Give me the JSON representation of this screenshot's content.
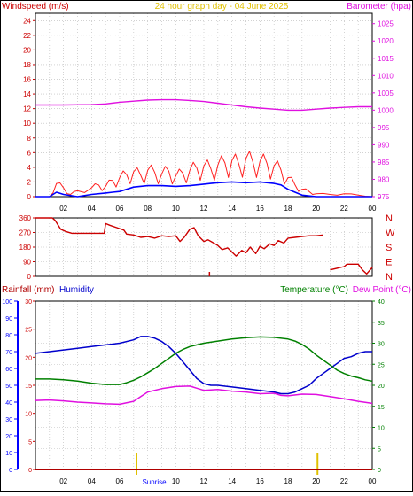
{
  "title": "24 hour graph day - 04 June 2025",
  "x_ticks": [
    "02",
    "04",
    "06",
    "08",
    "10",
    "12",
    "14",
    "16",
    "18",
    "20",
    "22",
    "00"
  ],
  "sunrise_label": "Sunrise",
  "colors": {
    "wind_gust": "#ff2020",
    "wind_avg": "#0000ff",
    "barometer": "#e010e0",
    "direction": "#cc0000",
    "rainfall": "#b00000",
    "humidity": "#0000cc",
    "temperature": "#008000",
    "dewpoint": "#e010e0",
    "sun_marker": "#e0c000",
    "axis_blue": "#0000ff",
    "axis_red": "#cc0000"
  },
  "chart_data": [
    {
      "type": "line",
      "name": "wind-barometer",
      "left_label": "Windspeed (m/s)",
      "right_label": "Barometer (hpa)",
      "left_ticks": [
        "0",
        "2",
        "4",
        "6",
        "8",
        "10",
        "12",
        "14",
        "16",
        "18",
        "20",
        "22",
        "24"
      ],
      "right_ticks": [
        "975",
        "980",
        "985",
        "990",
        "995",
        "1000",
        "1005",
        "1010",
        "1015",
        "1020",
        "1025"
      ],
      "left_range": [
        0,
        25
      ],
      "right_range": [
        975,
        1028
      ],
      "x_range_hours": [
        0,
        24
      ],
      "series": [
        {
          "key": "barometer",
          "axis": "right",
          "x": [
            0,
            2,
            4,
            5,
            6,
            7,
            8,
            9,
            10,
            11,
            12,
            13,
            14,
            15,
            16,
            17,
            18,
            19,
            20,
            21,
            22,
            23,
            24
          ],
          "values": [
            1001.5,
            1001.5,
            1001.6,
            1001.8,
            1002.3,
            1002.6,
            1002.9,
            1003.0,
            1003.0,
            1002.8,
            1002.5,
            1002.0,
            1001.5,
            1001.0,
            1000.6,
            1000.3,
            1000.0,
            1000.0,
            1000.3,
            1000.6,
            1000.8,
            1001.0,
            1001.0
          ]
        },
        {
          "key": "wind_gust",
          "axis": "left",
          "x": [
            0,
            1,
            1.5,
            2,
            2.5,
            3,
            4,
            4.5,
            5,
            5.5,
            6,
            6.5,
            7,
            7.5,
            8,
            8.5,
            9,
            9.5,
            10,
            10.5,
            11,
            11.5,
            12,
            12.5,
            13,
            13.5,
            14,
            14.5,
            15,
            15.5,
            16,
            16.5,
            17,
            17.5,
            18,
            18.5,
            19,
            19.5,
            20,
            21,
            22,
            23,
            24
          ],
          "values": [
            0,
            0,
            1.8,
            1.2,
            0.3,
            0.8,
            1.2,
            1.6,
            1.4,
            2.2,
            2.6,
            3.0,
            3.4,
            2.9,
            3.6,
            3.3,
            3.1,
            3.5,
            2.8,
            3.2,
            3.6,
            3.9,
            4.2,
            3.8,
            4.3,
            4.6,
            4.9,
            4.4,
            5.2,
            4.7,
            4.8,
            4.5,
            4.2,
            3.6,
            2.6,
            1.6,
            1.0,
            0.7,
            0.4,
            0.3,
            0.4,
            0.2,
            0
          ]
        },
        {
          "key": "wind_avg",
          "axis": "left",
          "x": [
            0,
            1,
            1.5,
            2,
            3,
            4,
            5,
            5.5,
            6,
            6.5,
            7,
            8,
            9,
            10,
            11,
            12,
            12.5,
            13,
            14,
            15,
            16,
            17,
            17.5,
            18,
            18.5,
            19,
            20,
            22,
            24
          ],
          "values": [
            0,
            0,
            0.6,
            0.3,
            0,
            0.3,
            0.5,
            0.6,
            0.7,
            1.0,
            1.3,
            1.5,
            1.5,
            1.4,
            1.5,
            1.7,
            1.8,
            1.9,
            2.0,
            1.9,
            2.0,
            1.8,
            1.6,
            1.0,
            0.6,
            0.2,
            0,
            0,
            0
          ]
        }
      ]
    },
    {
      "type": "line",
      "name": "wind-direction",
      "left_ticks": [
        "0",
        "90",
        "180",
        "270",
        "360"
      ],
      "right_ticks": [
        "N",
        "W",
        "S",
        "E",
        "N"
      ],
      "left_range": [
        0,
        360
      ],
      "x_range_hours": [
        0,
        24
      ],
      "series": [
        {
          "key": "direction",
          "x": [
            0,
            1.2,
            1.4,
            1.8,
            2.2,
            2.6,
            3,
            3.5,
            4,
            4.5,
            4.9,
            5,
            5.3,
            5.8,
            6.3,
            6.5,
            7,
            7.5,
            8,
            8.5,
            9,
            9.5,
            10,
            10.3,
            10.6,
            11,
            11.3,
            11.6,
            12,
            12.3,
            12.7,
            13,
            13.3,
            13.7,
            14,
            14.3,
            14.7,
            15,
            15.3,
            15.7,
            16,
            16.3,
            16.7,
            17,
            17.3,
            17.7,
            18,
            18.5,
            19,
            19.5,
            20,
            20.5
          ],
          "values": [
            360,
            360,
            345,
            290,
            275,
            265,
            265,
            265,
            265,
            265,
            265,
            325,
            315,
            300,
            285,
            260,
            255,
            240,
            245,
            235,
            250,
            245,
            250,
            215,
            240,
            290,
            300,
            250,
            215,
            225,
            205,
            190,
            165,
            175,
            150,
            125,
            160,
            145,
            180,
            140,
            185,
            170,
            200,
            190,
            220,
            205,
            235,
            240,
            245,
            250,
            250,
            255
          ]
        },
        {
          "key": "direction_tail",
          "x": [
            21,
            22,
            22.2,
            23,
            23.3,
            23.6,
            24
          ],
          "values": [
            40,
            60,
            75,
            75,
            40,
            15,
            55
          ]
        }
      ]
    },
    {
      "type": "line",
      "name": "rain-humidity-temperature",
      "left_labels": [
        "Rainfall (mm)",
        "Humidity"
      ],
      "right_labels": [
        "Temperature (°C)",
        "Dew Point (°C)"
      ],
      "humidity_ticks": [
        "0",
        "10",
        "20",
        "30",
        "40",
        "50",
        "60",
        "70",
        "80",
        "90",
        "100"
      ],
      "rain_ticks": [
        "0",
        "5",
        "10",
        "15",
        "20",
        "25",
        "30"
      ],
      "temp_ticks": [
        "0",
        "5",
        "10",
        "15",
        "20",
        "25",
        "30",
        "35",
        "40"
      ],
      "humidity_range": [
        0,
        100
      ],
      "rain_range": [
        0,
        30
      ],
      "temp_range": [
        0,
        40
      ],
      "x_range_hours": [
        0,
        24
      ],
      "sunrise_hour": 7.2,
      "sunset_hour": 20.1,
      "series": [
        {
          "key": "humidity",
          "axis": "humidity",
          "x": [
            0,
            1,
            2,
            3,
            4,
            5,
            6,
            7,
            7.5,
            8,
            8.5,
            9,
            9.5,
            10,
            10.5,
            11,
            11.5,
            12,
            12.5,
            13,
            14,
            15,
            16,
            17,
            17.5,
            18,
            18.5,
            19,
            19.5,
            20,
            20.5,
            21,
            21.5,
            22,
            22.5,
            23,
            23.5,
            24
          ],
          "values": [
            69,
            70,
            71,
            72,
            73,
            74,
            75,
            77,
            79,
            79,
            78,
            76,
            73,
            69,
            64,
            59,
            54,
            51,
            50,
            50,
            49,
            48,
            47,
            46,
            45,
            45,
            46,
            48,
            50,
            54,
            57,
            60,
            63,
            66,
            67,
            69,
            70,
            70
          ]
        },
        {
          "key": "temperature",
          "axis": "temp",
          "x": [
            0,
            1,
            2,
            3,
            4,
            5,
            6,
            6.5,
            7,
            7.5,
            8,
            8.5,
            9,
            9.5,
            10,
            10.5,
            11,
            11.5,
            12,
            13,
            14,
            15,
            16,
            17,
            18,
            18.5,
            19,
            19.5,
            20,
            20.5,
            21,
            21.5,
            22,
            22.5,
            23,
            23.5,
            24
          ],
          "values": [
            21.5,
            21.5,
            21.3,
            21,
            20.5,
            20.2,
            20.2,
            20.6,
            21.2,
            22,
            23,
            24,
            25.2,
            26.4,
            27.6,
            28.5,
            29.2,
            29.6,
            30,
            30.5,
            31,
            31.3,
            31.5,
            31.4,
            31,
            30.5,
            29.7,
            28.6,
            27.2,
            26,
            24.8,
            23.6,
            22.8,
            22.2,
            21.8,
            21.3,
            21
          ]
        },
        {
          "key": "dewpoint",
          "axis": "temp",
          "x": [
            0,
            1,
            2,
            3,
            4,
            5,
            6,
            7,
            7.5,
            8,
            9,
            10,
            11,
            11.5,
            12,
            13,
            14,
            15,
            16,
            17,
            17.5,
            18,
            19,
            20,
            21,
            22,
            23,
            24
          ],
          "values": [
            16.4,
            16.5,
            16.3,
            16.0,
            15.8,
            15.6,
            15.5,
            16.2,
            17.3,
            18.4,
            19.2,
            19.7,
            19.8,
            19.3,
            18.8,
            19.0,
            18.6,
            18.4,
            18.0,
            18.1,
            17.6,
            17.5,
            17.9,
            17.8,
            17.3,
            16.8,
            16.2,
            15.7
          ]
        },
        {
          "key": "rainfall",
          "axis": "rain",
          "x": [
            0,
            24
          ],
          "values": [
            0,
            0
          ]
        }
      ]
    }
  ]
}
